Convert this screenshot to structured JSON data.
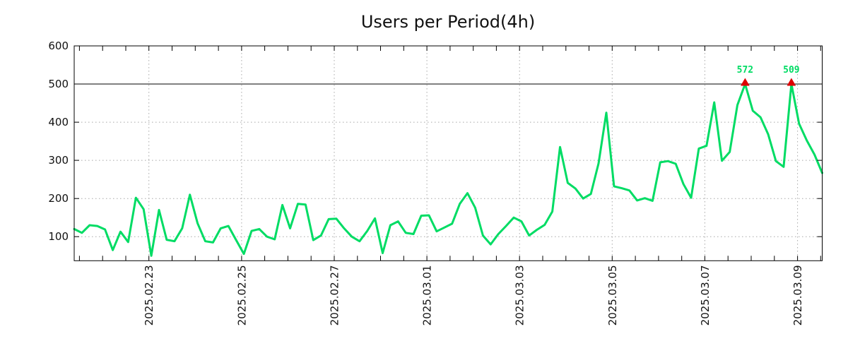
{
  "chart_data": {
    "type": "line",
    "title": "Users per Period(4h)",
    "period_hours": 4,
    "series": [
      {
        "name": "users",
        "color": "#00dc64",
        "values": [
          120,
          110,
          130,
          128,
          119,
          65,
          113,
          86,
          202,
          172,
          50,
          170,
          92,
          88,
          122,
          210,
          135,
          88,
          85,
          122,
          128,
          91,
          55,
          115,
          120,
          100,
          93,
          183,
          122,
          186,
          184,
          91,
          103,
          146,
          147,
          122,
          100,
          88,
          115,
          148,
          57,
          130,
          140,
          110,
          107,
          155,
          156,
          114,
          124,
          134,
          186,
          214,
          176,
          103,
          80,
          107,
          128,
          150,
          140,
          103,
          118,
          131,
          166,
          335,
          241,
          226,
          200,
          212,
          292,
          425,
          232,
          227,
          221,
          195,
          201,
          194,
          295,
          298,
          291,
          238,
          202,
          331,
          338,
          452,
          299,
          322,
          445,
          572,
          430,
          413,
          368,
          298,
          283,
          509,
          396,
          352,
          315,
          267
        ]
      }
    ],
    "ylim": [
      37,
      600
    ],
    "y_ticks": [
      100,
      200,
      300,
      400,
      500,
      600
    ],
    "threshold_line": 500,
    "clip_display_at": 500,
    "x_axis": {
      "labels": [
        "2025.02.23",
        "2025.02.25",
        "2025.02.27",
        "2025.03.01",
        "2025.03.03",
        "2025.03.05",
        "2025.03.07",
        "2025.03.09"
      ],
      "first_major_fraction": 0.0999,
      "major_step_fraction": 0.12387,
      "minor_step_fraction": 0.0309675,
      "minor_tick_interval": "12h"
    },
    "grid": {
      "h_dotted_at": [
        100,
        200,
        300,
        400
      ],
      "v_dotted": true,
      "color": "#a8a8a8"
    },
    "annotations": [
      {
        "label": "572",
        "value": 572,
        "point_index": 87,
        "marker": "red-triangle"
      },
      {
        "label": "509",
        "value": 509,
        "point_index": 93,
        "marker": "red-triangle"
      }
    ],
    "colors": {
      "line": "#00dc64",
      "marker": "#dd0000",
      "annotation_text": "#00dc64",
      "axis": "#000000",
      "text": "#111111",
      "background": "#ffffff"
    },
    "legend": null
  }
}
